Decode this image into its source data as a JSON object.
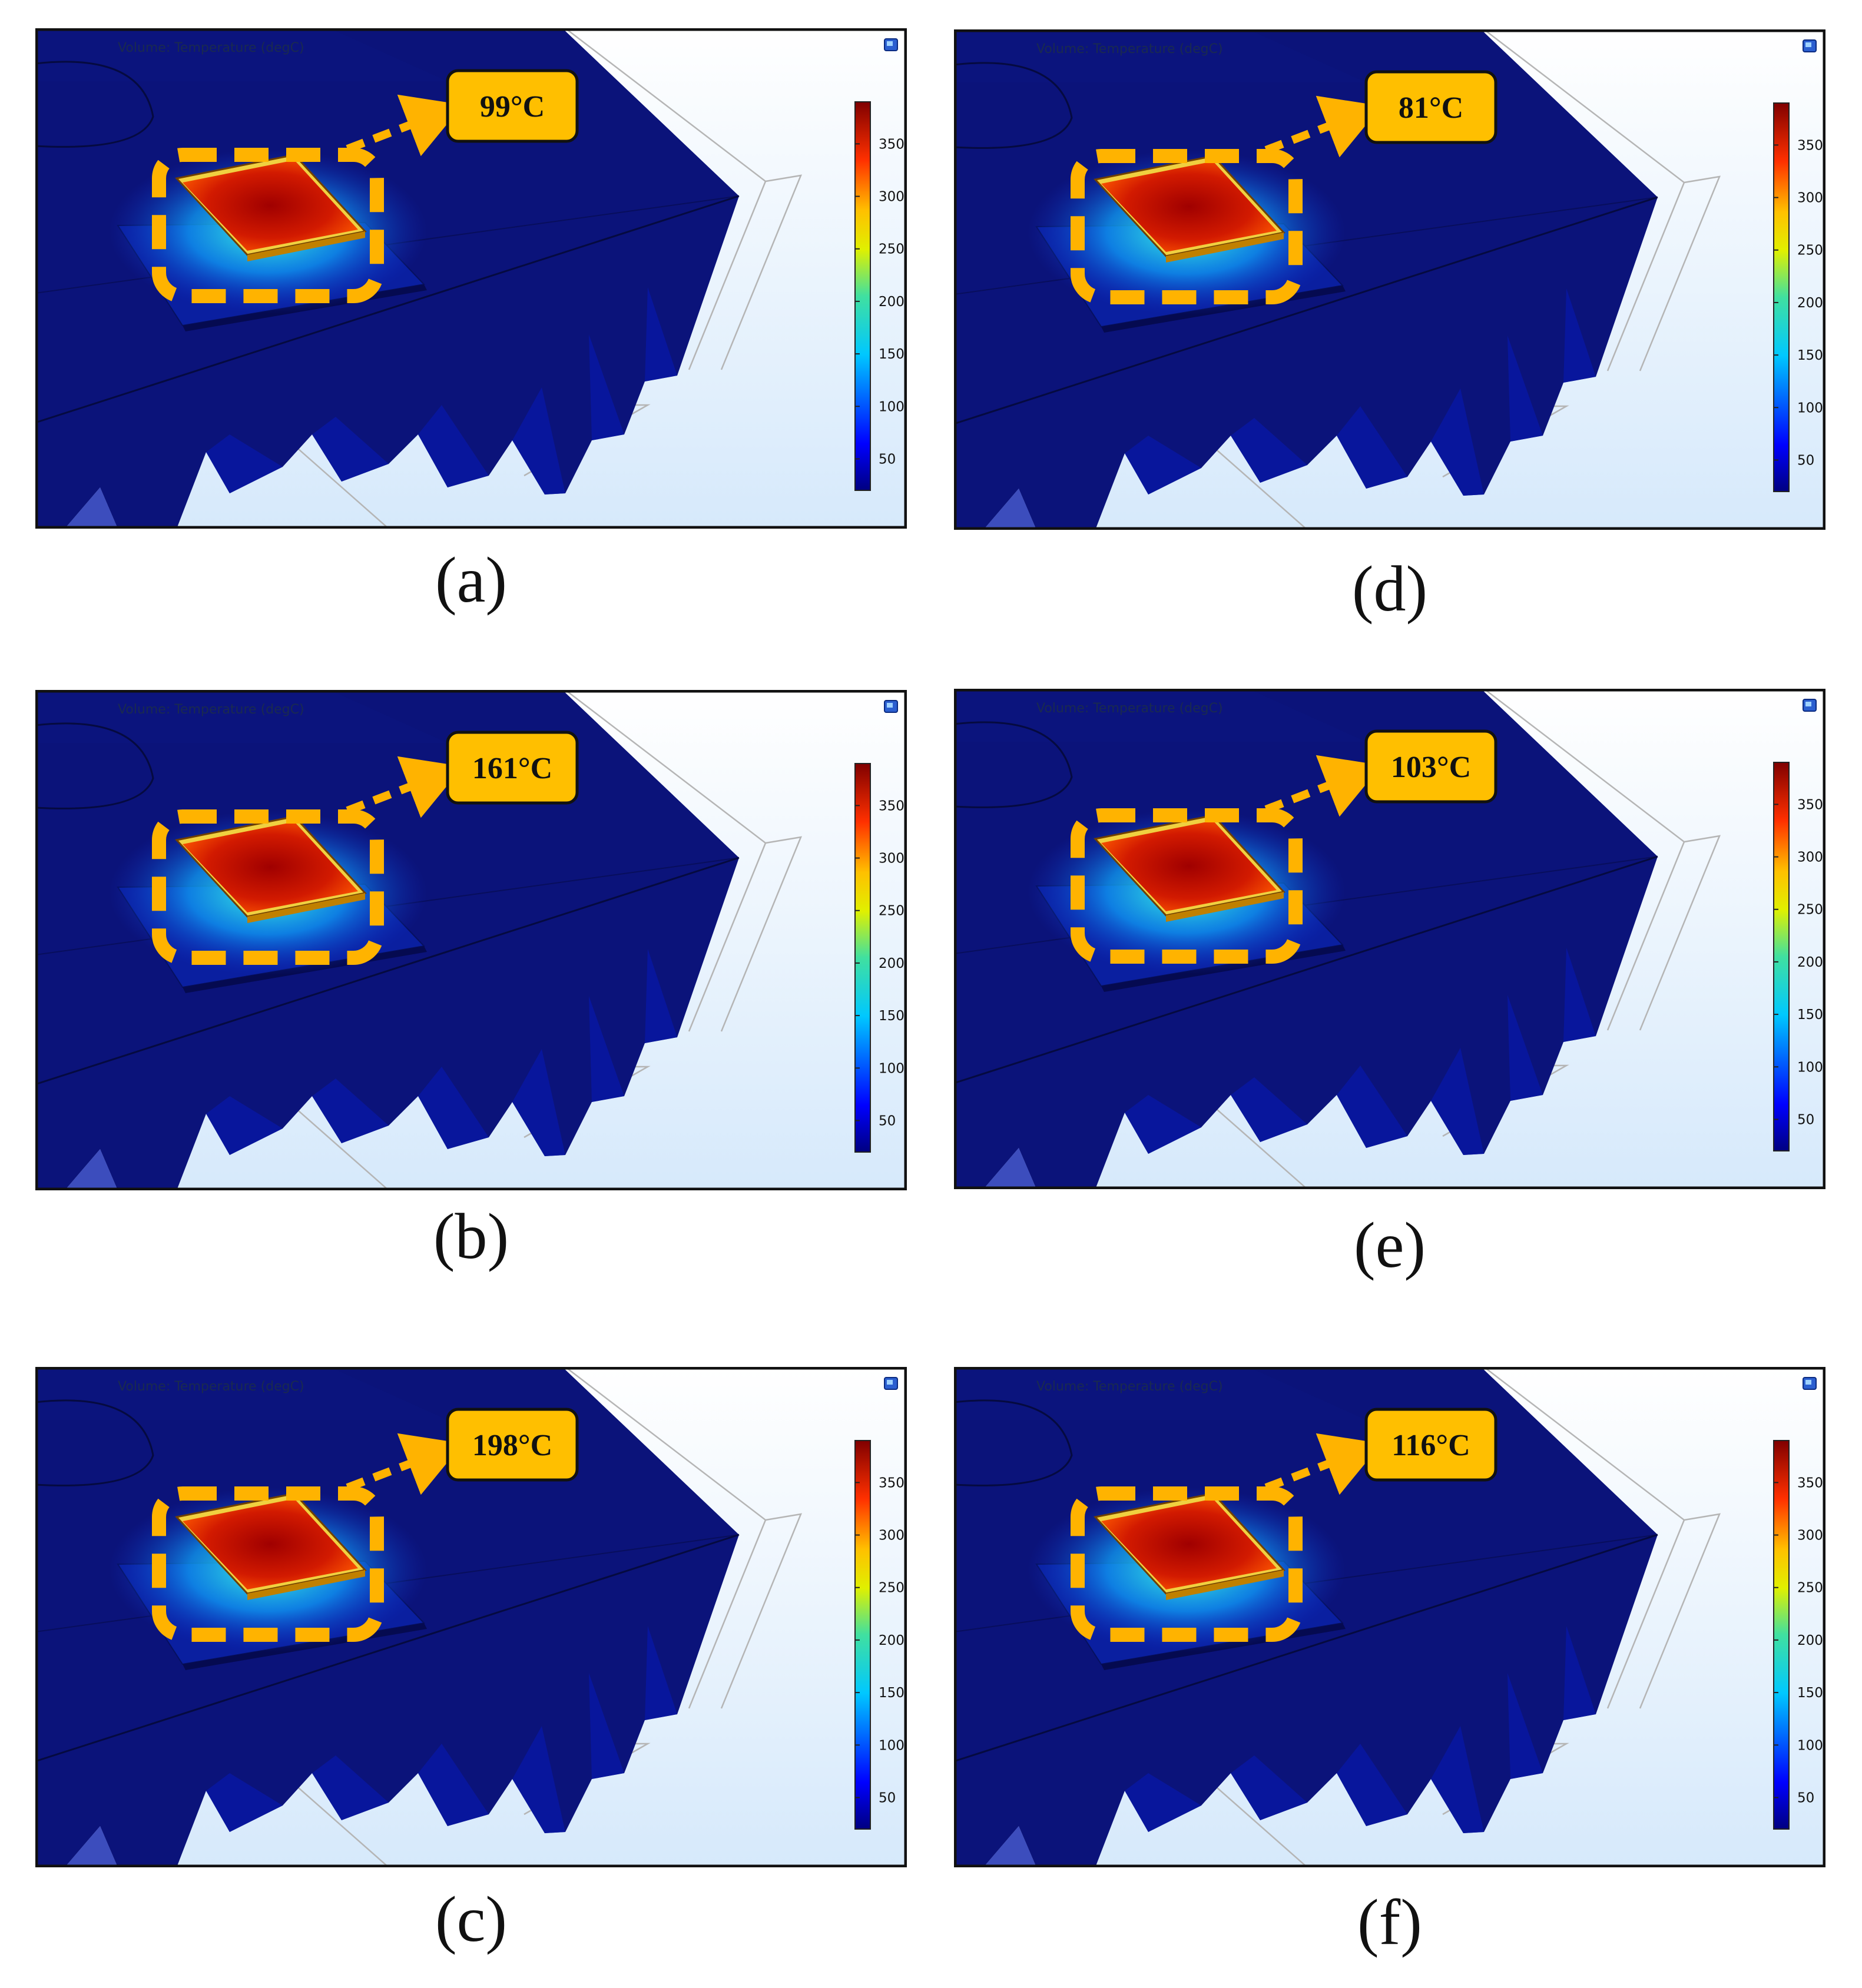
{
  "plot_title": "Volume: Temperature (degC)",
  "colorbar": {
    "ticks": [
      "350",
      "300",
      "250",
      "200",
      "150",
      "100",
      "50"
    ],
    "min": 20,
    "max": 390
  },
  "panels": [
    {
      "id": "a",
      "caption": "(a)",
      "callout": "99°C"
    },
    {
      "id": "d",
      "caption": "(d)",
      "callout": "81°C"
    },
    {
      "id": "b",
      "caption": "(b)",
      "callout": "161°C"
    },
    {
      "id": "e",
      "caption": "(e)",
      "callout": "103°C"
    },
    {
      "id": "c",
      "caption": "(c)",
      "callout": "198°C"
    },
    {
      "id": "f",
      "caption": "(f)",
      "callout": "116°C"
    }
  ],
  "colors": {
    "heatsink": "#0a1478",
    "background_top": "#ffffff",
    "background_bottom": "#d8ebfb",
    "callout_fill": "#ffbf00",
    "highlight_dash": "#ffb300"
  }
}
